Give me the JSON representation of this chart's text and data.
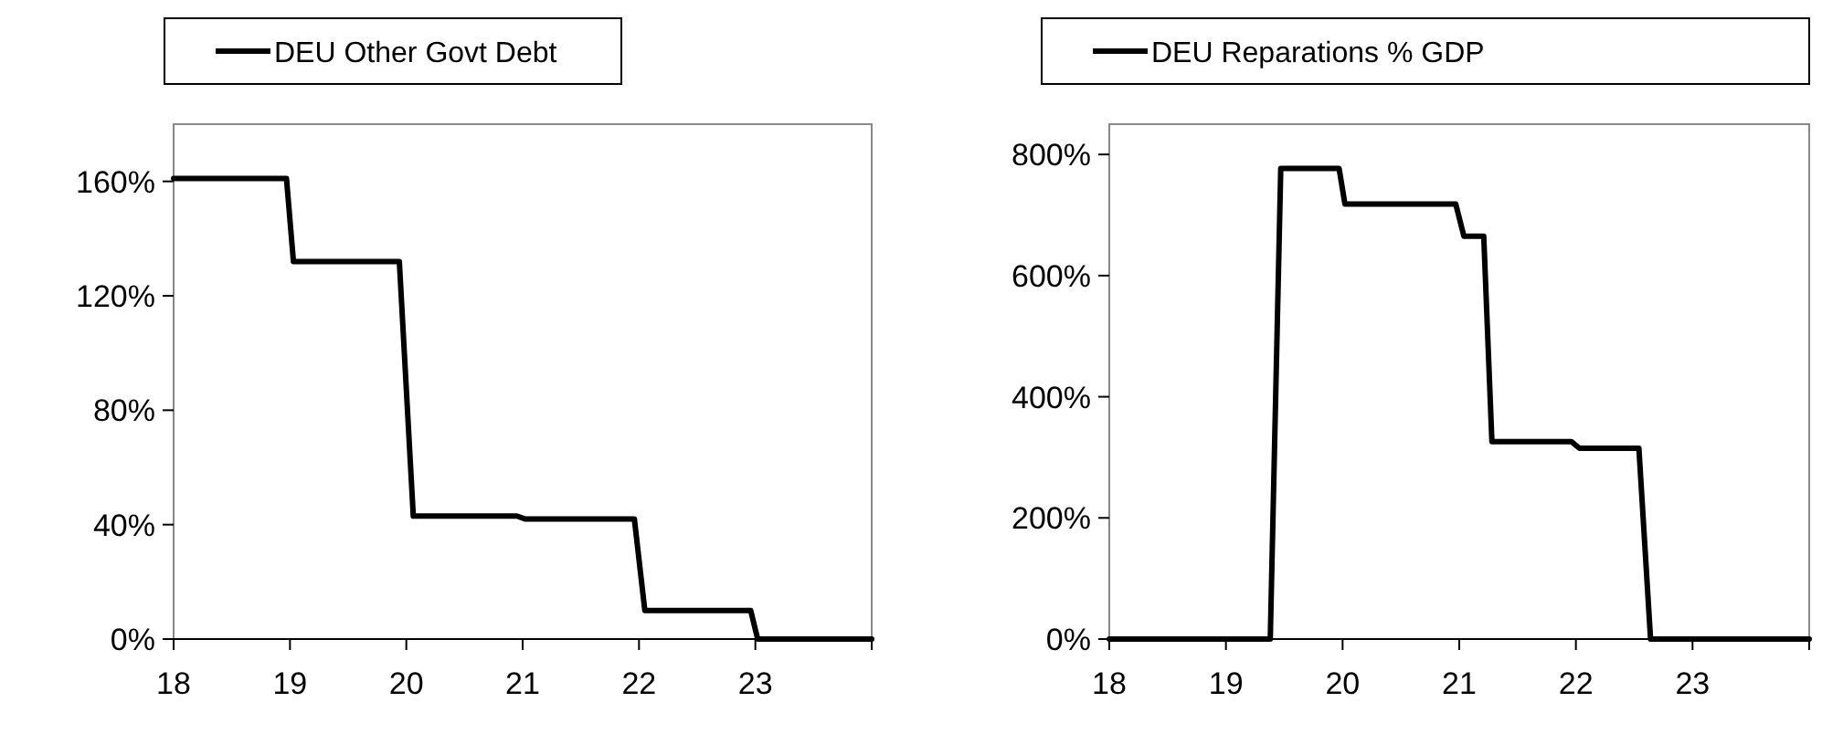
{
  "chart_data": [
    {
      "type": "line",
      "x": [
        18,
        18.97,
        19.03,
        19.94,
        20.06,
        20.95,
        21.02,
        21.96,
        22.05,
        22.96,
        23.02,
        24
      ],
      "series": [
        {
          "name": "DEU Other Govt Debt",
          "color": "#000000",
          "values": [
            161,
            161,
            132,
            132,
            43,
            43,
            42,
            42,
            10,
            10,
            0,
            0
          ]
        }
      ],
      "xlim": [
        18,
        24
      ],
      "xticks": [
        18,
        19,
        20,
        21,
        22,
        23
      ],
      "ylim": [
        0,
        180
      ],
      "yticks": [
        {
          "value": 0,
          "label": "0%"
        },
        {
          "value": 40,
          "label": "40%"
        },
        {
          "value": 80,
          "label": "80%"
        },
        {
          "value": 120,
          "label": "120%"
        },
        {
          "value": 160,
          "label": "160%"
        }
      ],
      "legend": "top"
    },
    {
      "type": "line",
      "x": [
        18,
        19.38,
        19.47,
        19.97,
        20.02,
        20.97,
        21.04,
        21.21,
        21.28,
        21.96,
        22.03,
        22.54,
        22.64,
        24
      ],
      "series": [
        {
          "name": "DEU Reparations % GDP",
          "color": "#000000",
          "values": [
            0,
            0,
            777,
            777,
            718,
            718,
            665,
            665,
            326,
            326,
            315,
            315,
            0,
            0
          ]
        }
      ],
      "xlim": [
        18,
        24
      ],
      "xticks": [
        18,
        19,
        20,
        21,
        22,
        23
      ],
      "ylim": [
        0,
        850
      ],
      "yticks": [
        {
          "value": 0,
          "label": "0%"
        },
        {
          "value": 200,
          "label": "200%"
        },
        {
          "value": 400,
          "label": "400%"
        },
        {
          "value": 600,
          "label": "600%"
        },
        {
          "value": 800,
          "label": "800%"
        }
      ],
      "legend": "top"
    }
  ]
}
